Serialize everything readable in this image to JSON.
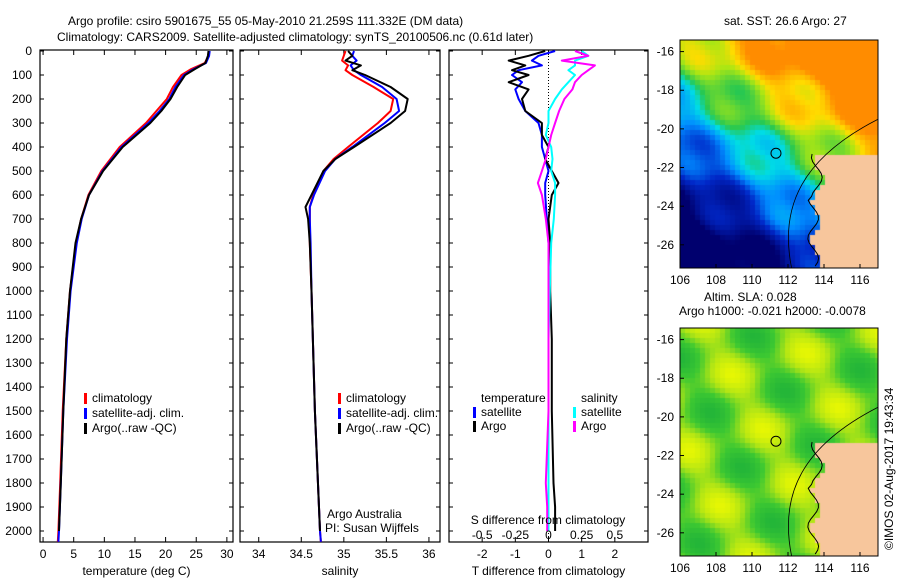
{
  "title_line1": "Argo profile: csiro 5901675_55 05-May-2010 21.259S 111.332E (DM data)",
  "title_line2": "Climatology: CARS2009. Satellite-adjusted climatology: synTS_20100506.nc (0.61d later)",
  "credit": "©IMOS 02-Aug-2017 19:43:34",
  "colors": {
    "climatology": "#ff0000",
    "satellite": "#0000ff",
    "argo": "#000000",
    "sal_satellite": "#00ffff",
    "sal_argo": "#ff00ff",
    "land": "#f7c69c"
  },
  "chart_data": [
    {
      "type": "line",
      "name": "temperature",
      "xlabel": "temperature (deg C)",
      "ylabel": "",
      "xlim": [
        -0.5,
        31
      ],
      "ylim": [
        2045,
        0
      ],
      "xticks": [
        0,
        5,
        10,
        15,
        20,
        25,
        30
      ],
      "yticks": [
        0,
        100,
        200,
        300,
        400,
        500,
        600,
        700,
        800,
        900,
        1000,
        1100,
        1200,
        1300,
        1400,
        1500,
        1600,
        1700,
        1800,
        1900,
        2000
      ],
      "legend": [
        "climatology",
        "satellite-adj. clim.",
        "Argo(..raw -QC)"
      ],
      "depth": [
        0,
        20,
        50,
        75,
        100,
        150,
        200,
        250,
        300,
        400,
        500,
        600,
        700,
        800,
        1000,
        1200,
        1500,
        1800,
        2000,
        2045
      ],
      "series": [
        {
          "name": "climatology",
          "values": [
            27,
            27,
            26.4,
            24.2,
            22.6,
            21.2,
            20.2,
            18.5,
            16.8,
            12.5,
            9.5,
            7.4,
            6.2,
            5.4,
            4.4,
            3.8,
            3.2,
            2.8,
            2.5,
            2.4
          ]
        },
        {
          "name": "satellite-adj. clim.",
          "values": [
            27.2,
            27.1,
            26.6,
            24.6,
            23.0,
            21.6,
            20.6,
            19.0,
            17.2,
            12.8,
            9.7,
            7.5,
            6.3,
            5.5,
            4.5,
            3.9,
            3.3,
            2.9,
            2.6,
            2.5
          ]
        },
        {
          "name": "Argo(..raw -QC)",
          "values": [
            27.0,
            26.9,
            26.5,
            24.8,
            23.2,
            21.9,
            20.8,
            19.3,
            17.5,
            13.0,
            9.8,
            7.5,
            6.2,
            5.3,
            4.4,
            3.8,
            3.3,
            2.9,
            2.6,
            null
          ]
        }
      ]
    },
    {
      "type": "line",
      "name": "salinity",
      "xlabel": "salinity",
      "xlim": [
        33.78,
        36.13
      ],
      "ylim": [
        2045,
        0
      ],
      "xticks": [
        34,
        34.5,
        35,
        35.5,
        36
      ],
      "legend": [
        "climatology",
        "satellite-adj. clim.",
        "Argo(..raw -QC)"
      ],
      "annotation": [
        "Argo Australia",
        "PI: Susan Wijffels"
      ],
      "depth": [
        0,
        20,
        40,
        60,
        80,
        100,
        150,
        200,
        250,
        300,
        400,
        450,
        500,
        600,
        650,
        700,
        800,
        1000,
        1500,
        2000,
        2045
      ],
      "series": [
        {
          "name": "climatology",
          "values": [
            35.02,
            35.0,
            34.98,
            35.05,
            35.02,
            35.1,
            35.35,
            35.58,
            35.55,
            35.4,
            35.05,
            34.88,
            34.76,
            34.64,
            34.6,
            34.6,
            34.6,
            34.62,
            34.66,
            34.72,
            34.73
          ]
        },
        {
          "name": "satellite-adj. clim.",
          "values": [
            35.12,
            35.1,
            35.15,
            35.08,
            35.12,
            35.2,
            35.45,
            35.62,
            35.65,
            35.48,
            35.1,
            34.9,
            34.78,
            34.65,
            34.6,
            34.6,
            34.61,
            34.62,
            34.66,
            34.72,
            34.73
          ]
        },
        {
          "name": "Argo(..raw -QC)",
          "values": [
            35.05,
            35.1,
            35.02,
            35.2,
            35.1,
            35.25,
            35.55,
            35.75,
            35.72,
            35.55,
            35.12,
            34.9,
            34.76,
            34.62,
            34.55,
            34.58,
            34.6,
            34.62,
            34.66,
            34.72,
            null
          ]
        }
      ]
    },
    {
      "type": "line",
      "name": "difference",
      "xlabel": "T difference from climatology",
      "x2label": "S difference from climatology",
      "xlim": [
        -3,
        3
      ],
      "xticks": [
        -2,
        -1,
        0,
        1,
        2
      ],
      "x2lim": [
        -0.75,
        0.75
      ],
      "x2ticks": [
        -0.5,
        -0.25,
        0,
        0.25,
        0.5
      ],
      "x2ticklabels": [
        "-0.5",
        "-0.25",
        "0",
        "0.25",
        "0.5"
      ],
      "legend": {
        "temperature": [
          "satellite",
          "Argo"
        ],
        "salinity": [
          "satellite",
          "Argo"
        ]
      },
      "legend_titles": [
        "temperature",
        "salinity"
      ],
      "depth": [
        0,
        20,
        40,
        60,
        80,
        100,
        130,
        160,
        200,
        250,
        300,
        350,
        400,
        450,
        500,
        550,
        600,
        700,
        800,
        1000,
        1200,
        1500,
        1800,
        1900,
        2000
      ],
      "series": [
        {
          "name": "T satellite",
          "values": [
            0.2,
            -0.3,
            -0.5,
            -0.2,
            -0.9,
            -1.1,
            -0.8,
            -1.0,
            -0.9,
            -0.7,
            -0.3,
            -0.2,
            -0.2,
            -0.1,
            0,
            -0.1,
            -0.1,
            -0.05,
            0,
            0,
            0,
            0,
            0,
            0,
            0
          ]
        },
        {
          "name": "T Argo",
          "values": [
            -0.1,
            -0.6,
            -1.2,
            -0.7,
            -1.1,
            -0.6,
            -1.2,
            -0.6,
            -0.8,
            -0.7,
            -0.2,
            -0.2,
            0,
            -0.1,
            0.1,
            0.3,
            0.1,
            0,
            0.05,
            0.05,
            0.1,
            0.1,
            0.15,
            0.2,
            0.2
          ]
        },
        {
          "name": "S satellite",
          "values": [
            0.25,
            0.3,
            0.2,
            0.2,
            0.15,
            0.2,
            0.15,
            0.1,
            0.05,
            0.0,
            0.0,
            -0.02,
            0.02,
            0.03,
            0.02,
            0.05,
            0.05,
            0.04,
            0.02,
            0.01,
            0.0,
            0.0,
            0.0,
            0.0,
            0.0
          ]
        },
        {
          "name": "S Argo",
          "values": [
            0.2,
            0.3,
            0.1,
            0.35,
            0.3,
            0.25,
            0.2,
            0.18,
            0.12,
            0.08,
            0.05,
            0.02,
            0.0,
            -0.02,
            -0.05,
            -0.08,
            -0.05,
            -0.02,
            0,
            0,
            0,
            0,
            -0.02,
            -0.01,
            -0.01
          ]
        }
      ]
    },
    {
      "type": "heatmap",
      "name": "sst-map",
      "title": "sat. SST: 26.6 Argo: 27",
      "xlim": [
        106,
        117
      ],
      "ylim": [
        -27.2,
        -15.4
      ],
      "xticks": [
        106,
        108,
        110,
        112,
        114,
        116
      ],
      "yticks": [
        -16,
        -18,
        -20,
        -22,
        -24,
        -26
      ],
      "marker": [
        111.332,
        -21.259
      ]
    },
    {
      "type": "heatmap",
      "name": "sla-map",
      "title": [
        "Altim. SLA: 0.028",
        "Argo h1000: -0.021 h2000: -0.0078"
      ],
      "xlim": [
        106,
        117
      ],
      "ylim": [
        -27.2,
        -15.4
      ],
      "xticks": [
        106,
        108,
        110,
        112,
        114,
        116
      ],
      "yticks": [
        -16,
        -18,
        -20,
        -22,
        -24,
        -26
      ],
      "marker": [
        111.332,
        -21.259
      ]
    }
  ]
}
